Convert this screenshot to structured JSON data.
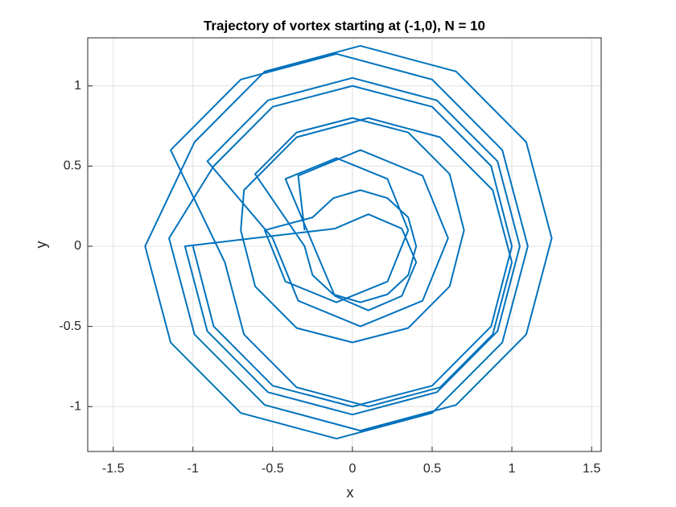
{
  "chart_data": {
    "type": "line",
    "title": "Trajectory of vortex starting at (-1,0), N = 10",
    "x_label": "x",
    "y_label": "y",
    "xlim": [
      -1.66,
      1.56
    ],
    "ylim": [
      -1.28,
      1.3
    ],
    "xticks": [
      -1.5,
      -1,
      -0.5,
      0,
      0.5,
      1,
      1.5
    ],
    "yticks": [
      -1,
      -0.5,
      0,
      0.5,
      1
    ],
    "grid": true,
    "series": [
      {
        "color": "#0072bd",
        "x": [
          -1,
          -0.87,
          -0.5,
          0,
          0.5,
          0.87,
          1,
          0.87,
          0.5,
          0,
          -0.5,
          -0.87,
          -1.15,
          -0.99,
          -0.55,
          0.05,
          0.65,
          1.09,
          1.25,
          1.09,
          0.65,
          0.05,
          -0.55,
          -0.99,
          -1.3,
          -1.14,
          -0.7,
          -0.1,
          0.5,
          0.94,
          1.1,
          0.94,
          0.5,
          -0.1,
          -0.7,
          -1.14,
          -0.8,
          -0.68,
          -0.35,
          0.1,
          0.55,
          0.88,
          1.0,
          0.88,
          0.55,
          0.1,
          -0.35,
          -0.68,
          -0.7,
          -0.61,
          -0.35,
          0,
          0.35,
          0.61,
          0.7,
          0.61,
          0.35,
          0,
          -0.35,
          -0.61,
          -0.3,
          -0.25,
          -0.12,
          0.05,
          0.22,
          0.35,
          0.4,
          0.35,
          0.22,
          0.05,
          -0.12,
          -0.25,
          -0.55,
          -0.42,
          -0.1,
          0.22,
          0.35,
          0.22,
          -0.1,
          -0.42,
          -0.2,
          -0.11,
          0.1,
          0.31,
          0.4,
          0.31,
          0.1,
          -0.11,
          -1.05,
          -0.91,
          -0.53,
          0,
          0.53,
          0.91,
          1.05,
          0.91,
          0.53,
          0,
          -0.53,
          -0.91,
          -0.5,
          -0.34,
          0.05,
          0.44,
          0.6,
          0.44,
          0.05,
          -0.34,
          -0.3
        ],
        "values": [
          0,
          -0.5,
          -0.87,
          -1,
          -0.87,
          -0.5,
          0,
          0.5,
          0.87,
          1,
          0.87,
          0.5,
          0.05,
          -0.55,
          -0.99,
          -1.15,
          -0.99,
          -0.55,
          0.05,
          0.65,
          1.09,
          1.25,
          1.09,
          0.65,
          0,
          -0.6,
          -1.04,
          -1.2,
          -1.04,
          -0.6,
          0,
          0.6,
          1.04,
          1.2,
          1.04,
          0.6,
          -0.1,
          -0.55,
          -0.88,
          -1.0,
          -0.88,
          -0.55,
          -0.1,
          0.35,
          0.68,
          0.8,
          0.68,
          0.35,
          0.1,
          -0.25,
          -0.51,
          -0.6,
          -0.51,
          -0.25,
          0.1,
          0.45,
          0.71,
          0.8,
          0.71,
          0.45,
          0,
          -0.18,
          -0.3,
          -0.35,
          -0.3,
          -0.18,
          0,
          0.18,
          0.3,
          0.35,
          0.3,
          0.18,
          0.1,
          -0.22,
          -0.35,
          -0.22,
          0.1,
          0.42,
          0.55,
          0.42,
          -0.1,
          -0.31,
          -0.4,
          -0.31,
          -0.1,
          0.11,
          0.2,
          0.11,
          0,
          -0.53,
          -0.91,
          -1.05,
          -0.91,
          -0.53,
          0,
          0.53,
          0.91,
          1.05,
          0.91,
          0.53,
          0.05,
          -0.34,
          -0.5,
          -0.34,
          0.05,
          0.44,
          0.6,
          0.44,
          0.1
        ]
      }
    ]
  }
}
